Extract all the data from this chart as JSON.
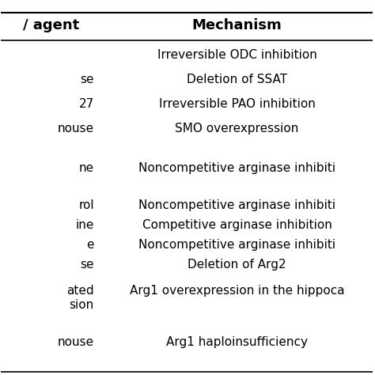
{
  "col1_header": "/ agent",
  "col2_header": "Mechanism",
  "rows": [
    [
      "",
      "Irreversible ODC inhibition"
    ],
    [
      "se",
      "Deletion of SSAT"
    ],
    [
      "27",
      "Irreversible PAO inhibition"
    ],
    [
      "nouse",
      "SMO overexpression"
    ],
    [
      "",
      ""
    ],
    [
      "ne",
      "Noncompetitive arginase inhibiti"
    ],
    [
      "",
      ""
    ],
    [
      "rol",
      "Noncompetitive arginase inhibiti"
    ],
    [
      "ine",
      "Competitive arginase inhibition"
    ],
    [
      "e",
      "Noncompetitive arginase inhibiti"
    ],
    [
      "se",
      "Deletion of Arg2"
    ],
    [
      "ated\nsion",
      "Arg1 overexpression in the hippoca"
    ],
    [
      "",
      ""
    ],
    [
      "nouse",
      "Arg1 haploinsufficiency"
    ]
  ],
  "bg_color": "#ffffff",
  "text_color": "#000000",
  "header_color": "#000000",
  "line_color": "#000000",
  "font_size": 11,
  "header_font_size": 13
}
